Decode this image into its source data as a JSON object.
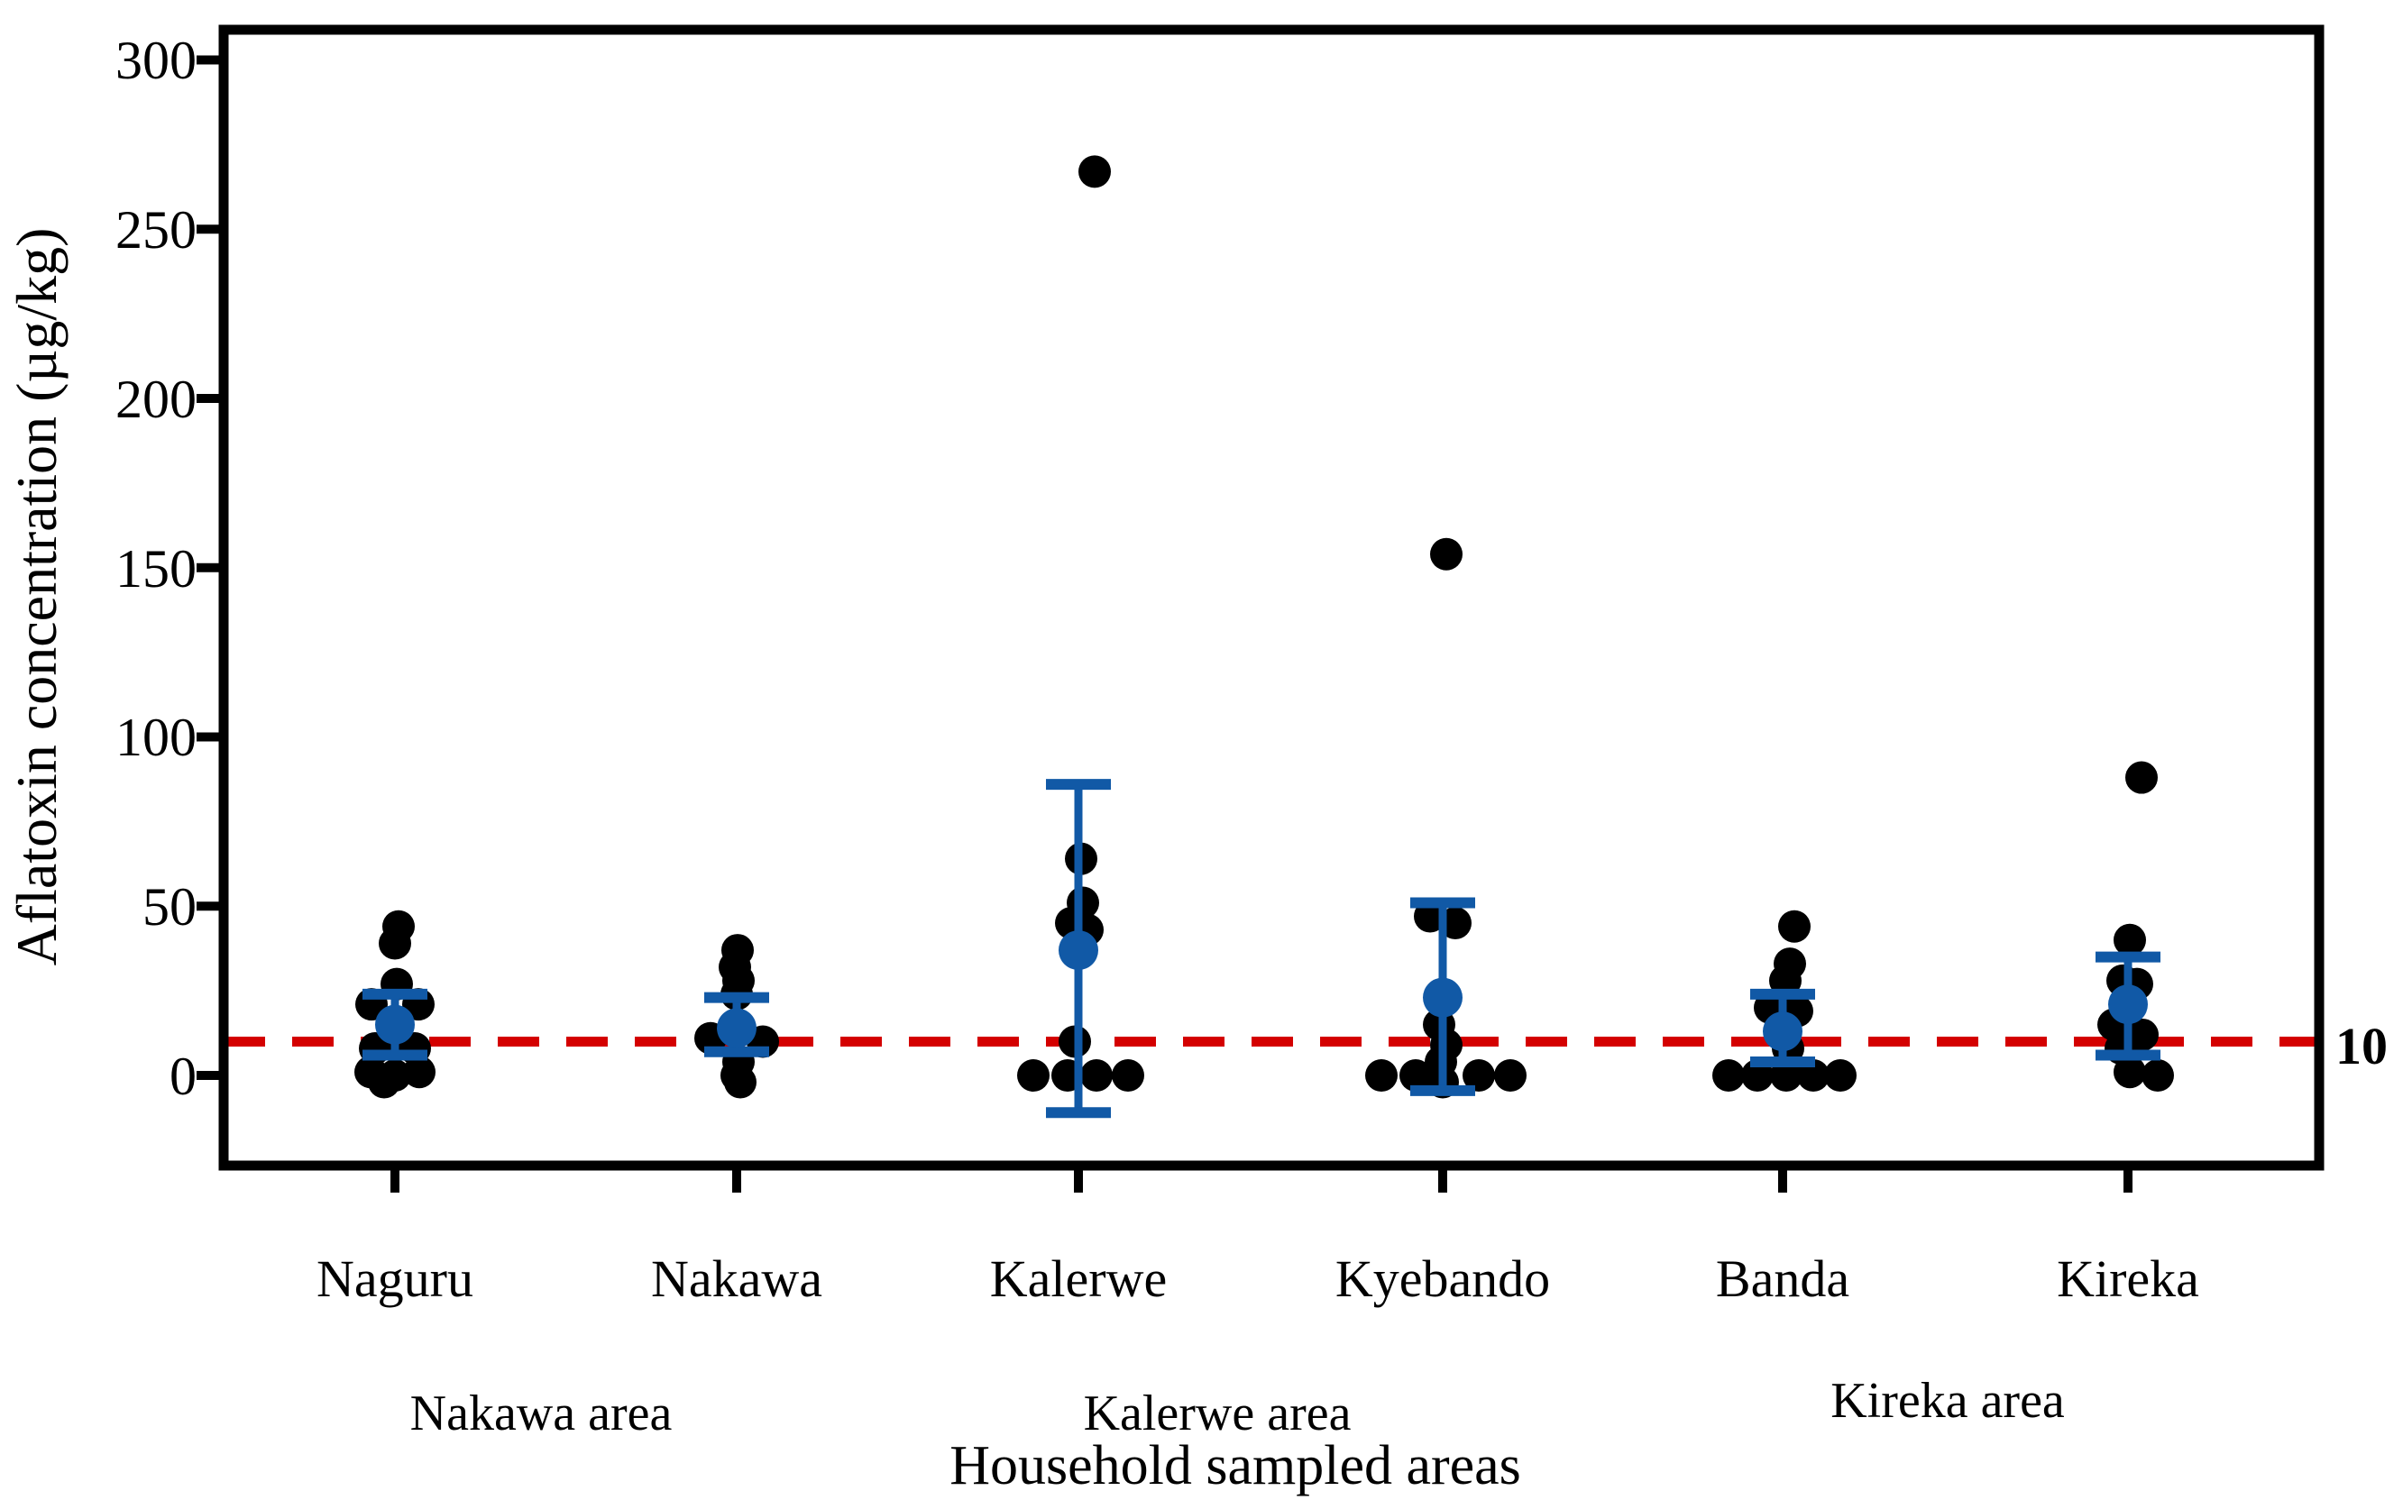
{
  "chart_data": {
    "type": "scatter",
    "title": "",
    "xlabel": "Household sampled areas",
    "ylabel": "Aflatoxin concentration (µg/kg)",
    "yticks": [
      0,
      50,
      100,
      150,
      200,
      250,
      300
    ],
    "ylim": [
      -27,
      309
    ],
    "grid": false,
    "legend": "none",
    "threshold_line": {
      "y": 10,
      "label": "10",
      "style": "dashed"
    },
    "colors": {
      "sample_points": "#000000",
      "mean_marker": "#1159a6",
      "error_bar": "#1159a6",
      "threshold": "#d40000",
      "threshold_label": "#8e1b17",
      "frame": "#000000"
    },
    "categories": [
      "Naguru",
      "Nakawa",
      "Kalerwe",
      "Kyebando",
      "Banda",
      "Kireka"
    ],
    "area_groups": [
      {
        "label": "Nakawa area",
        "spans": [
          "Naguru",
          "Nakawa"
        ]
      },
      {
        "label": "Kalerwe area",
        "spans": [
          "Kalerwe",
          "Kyebando"
        ]
      },
      {
        "label": "Kireka area",
        "spans": [
          "Banda",
          "Kireka"
        ]
      }
    ],
    "groups": [
      {
        "category": "Naguru",
        "mean": 15,
        "err_lo": 6,
        "err_hi": 24,
        "points": [
          {
            "v": 44,
            "j": 4
          },
          {
            "v": 39,
            "j": 0
          },
          {
            "v": 27,
            "j": 2
          },
          {
            "v": 21,
            "j": -26
          },
          {
            "v": 21,
            "j": 26
          },
          {
            "v": 8,
            "j": -22
          },
          {
            "v": 8,
            "j": 22
          },
          {
            "v": 1,
            "j": -27
          },
          {
            "v": 0,
            "j": 0
          },
          {
            "v": 1,
            "j": 27
          },
          {
            "v": -2,
            "j": -12
          }
        ]
      },
      {
        "category": "Nakawa",
        "mean": 14,
        "err_lo": 7,
        "err_hi": 23,
        "points": [
          {
            "v": 37,
            "j": 1
          },
          {
            "v": 32,
            "j": -2
          },
          {
            "v": 28,
            "j": 2
          },
          {
            "v": 24,
            "j": 0
          },
          {
            "v": 11,
            "j": -29
          },
          {
            "v": 10,
            "j": 29
          },
          {
            "v": 4,
            "j": 2
          },
          {
            "v": 0,
            "j": 0
          },
          {
            "v": -2,
            "j": 4
          }
        ]
      },
      {
        "category": "Kalerwe",
        "mean": 37,
        "err_lo": -11,
        "err_hi": 86,
        "points": [
          {
            "v": 267,
            "j": 18
          },
          {
            "v": 64,
            "j": 3
          },
          {
            "v": 51,
            "j": 5
          },
          {
            "v": 45,
            "j": -8
          },
          {
            "v": 43,
            "j": 10
          },
          {
            "v": 10,
            "j": -4
          },
          {
            "v": 0,
            "j": -50
          },
          {
            "v": 0,
            "j": -12
          },
          {
            "v": 0,
            "j": 20
          },
          {
            "v": 0,
            "j": 55
          }
        ]
      },
      {
        "category": "Kyebando",
        "mean": 23,
        "err_lo": -4.5,
        "err_hi": 51,
        "points": [
          {
            "v": 154,
            "j": 4
          },
          {
            "v": 47,
            "j": -14
          },
          {
            "v": 45,
            "j": 14
          },
          {
            "v": 15,
            "j": -4
          },
          {
            "v": 9,
            "j": 4
          },
          {
            "v": 4,
            "j": -2
          },
          {
            "v": 0,
            "j": -68
          },
          {
            "v": 0,
            "j": -30
          },
          {
            "v": 0,
            "j": 40
          },
          {
            "v": 0,
            "j": 75
          },
          {
            "v": -2,
            "j": 0
          }
        ]
      },
      {
        "category": "Banda",
        "mean": 13,
        "err_lo": 4,
        "err_hi": 24,
        "points": [
          {
            "v": 44,
            "j": 13
          },
          {
            "v": 33,
            "j": 8
          },
          {
            "v": 28,
            "j": 3
          },
          {
            "v": 20,
            "j": -14
          },
          {
            "v": 19,
            "j": 16
          },
          {
            "v": 8,
            "j": 6
          },
          {
            "v": 0,
            "j": -60
          },
          {
            "v": 0,
            "j": -28
          },
          {
            "v": 0,
            "j": 4
          },
          {
            "v": 0,
            "j": 34
          },
          {
            "v": 0,
            "j": 64
          }
        ]
      },
      {
        "category": "Kireka",
        "mean": 21,
        "err_lo": 6,
        "err_hi": 35,
        "points": [
          {
            "v": 88,
            "j": 15
          },
          {
            "v": 40,
            "j": 2
          },
          {
            "v": 28,
            "j": -6
          },
          {
            "v": 27,
            "j": 10
          },
          {
            "v": 15,
            "j": -16
          },
          {
            "v": 12,
            "j": 16
          },
          {
            "v": 8,
            "j": -8
          },
          {
            "v": 1,
            "j": 2
          },
          {
            "v": 0,
            "j": 33
          }
        ]
      }
    ]
  }
}
